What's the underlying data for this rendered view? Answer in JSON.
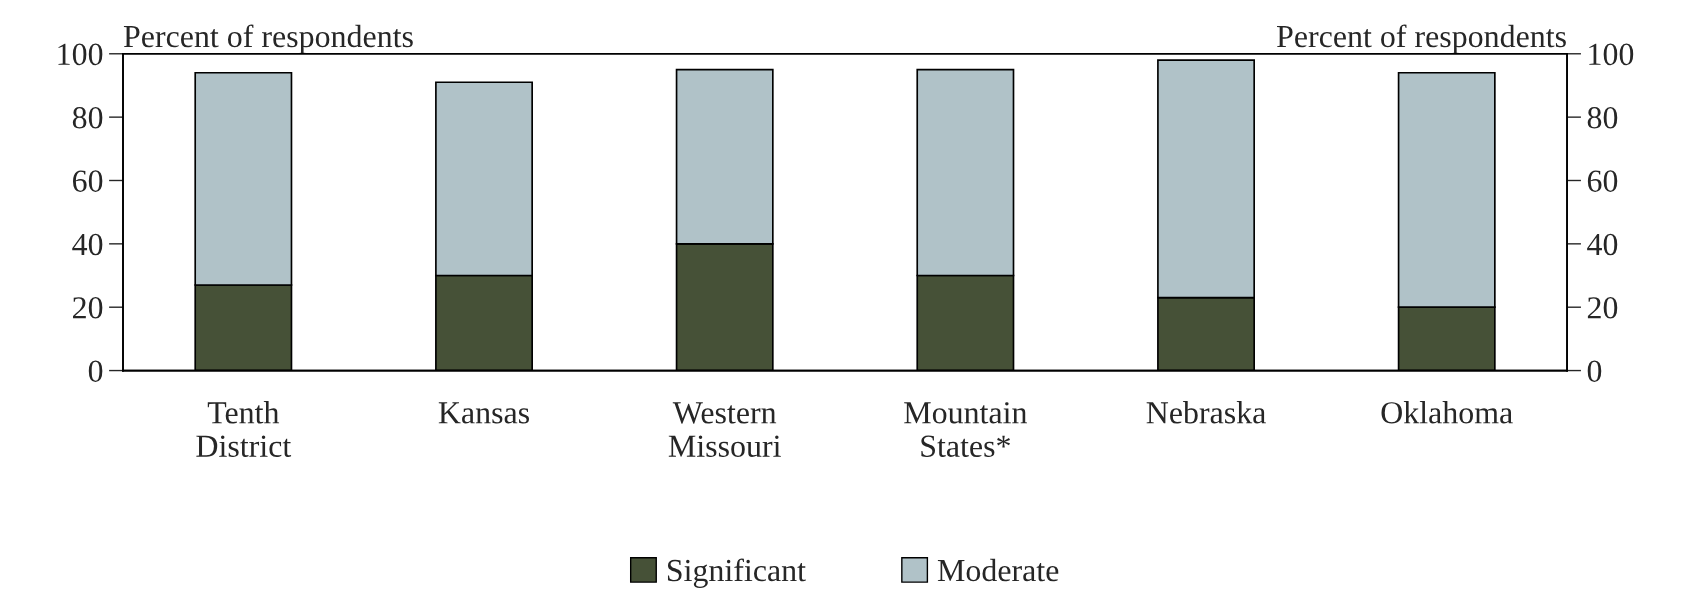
{
  "chart_data": {
    "type": "bar",
    "stacked": true,
    "ylabel": "Percent of respondents",
    "y2label": "Percent of respondents",
    "categories": [
      "Tenth\nDistrict",
      "Kansas",
      "Western\nMissouri",
      "Mountain\nStates*",
      "Nebraska",
      "Oklahoma"
    ],
    "series": [
      {
        "name": "Significant",
        "color": "#465137",
        "values": [
          27,
          30,
          40,
          30,
          23,
          20
        ]
      },
      {
        "name": "Moderate",
        "color": "#b0c2c8",
        "values": [
          67,
          61,
          55,
          65,
          75,
          74
        ]
      }
    ],
    "ylim": [
      0,
      100
    ],
    "yticks": [
      0,
      20,
      40,
      60,
      80,
      100
    ],
    "y2lim": [
      0,
      100
    ],
    "y2ticks": [
      0,
      20,
      40,
      60,
      80,
      100
    ],
    "grid": false,
    "legend": "bottom"
  }
}
